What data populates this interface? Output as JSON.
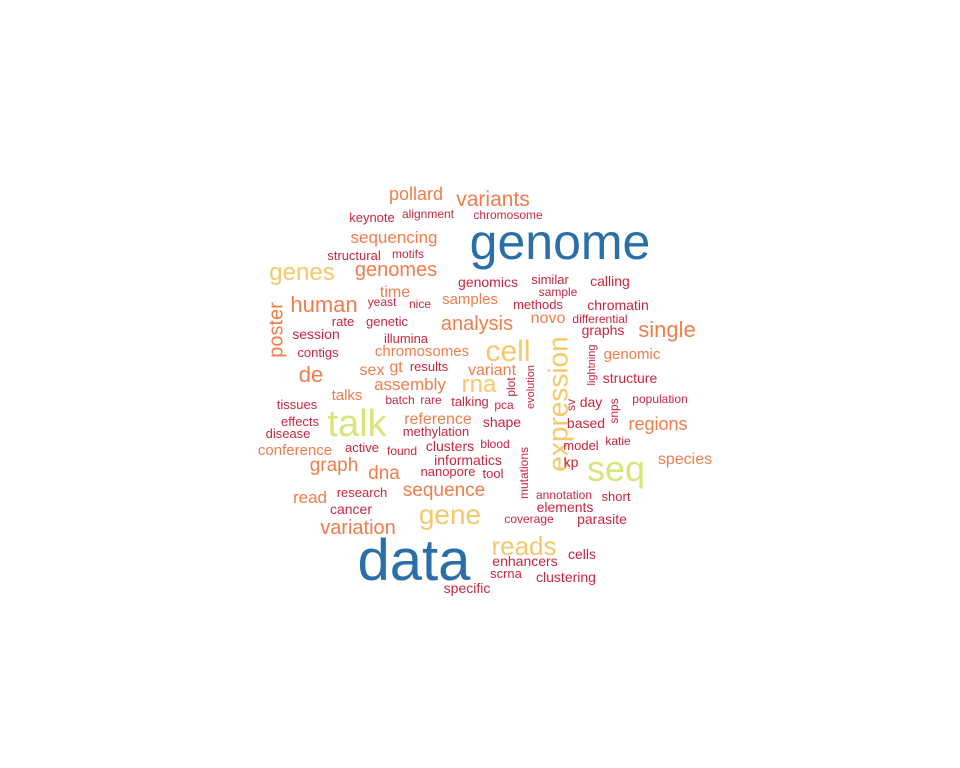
{
  "palette": {
    "blue": "#2b6fa8",
    "green": "#d4e87a",
    "yellow": "#f5c86b",
    "orange": "#f07d4c",
    "red": "#c92642"
  },
  "words": [
    {
      "text": "data",
      "color": "blue"
    },
    {
      "text": "genome",
      "color": "blue"
    },
    {
      "text": "talk",
      "color": "green"
    },
    {
      "text": "seq",
      "color": "green"
    },
    {
      "text": "expression",
      "color": "yellow"
    },
    {
      "text": "cell",
      "color": "yellow"
    },
    {
      "text": "gene",
      "color": "yellow"
    },
    {
      "text": "reads",
      "color": "yellow"
    },
    {
      "text": "genes",
      "color": "yellow"
    },
    {
      "text": "rna",
      "color": "yellow"
    },
    {
      "text": "variants",
      "color": "orange"
    },
    {
      "text": "human",
      "color": "orange"
    },
    {
      "text": "single",
      "color": "orange"
    },
    {
      "text": "genomes",
      "color": "orange"
    },
    {
      "text": "analysis",
      "color": "orange"
    },
    {
      "text": "variation",
      "color": "orange"
    },
    {
      "text": "sequence",
      "color": "orange"
    },
    {
      "text": "de",
      "color": "orange"
    },
    {
      "text": "graph",
      "color": "orange"
    },
    {
      "text": "regions",
      "color": "orange"
    },
    {
      "text": "poster",
      "color": "orange"
    },
    {
      "text": "pollard",
      "color": "orange"
    },
    {
      "text": "sequencing",
      "color": "orange"
    },
    {
      "text": "assembly",
      "color": "orange"
    },
    {
      "text": "read",
      "color": "orange"
    },
    {
      "text": "dna",
      "color": "orange"
    },
    {
      "text": "species",
      "color": "orange"
    },
    {
      "text": "reference",
      "color": "orange"
    },
    {
      "text": "chromosomes",
      "color": "orange"
    },
    {
      "text": "samples",
      "color": "orange"
    },
    {
      "text": "variant",
      "color": "orange"
    },
    {
      "text": "novo",
      "color": "orange"
    },
    {
      "text": "time",
      "color": "orange"
    },
    {
      "text": "conference",
      "color": "orange"
    },
    {
      "text": "genomic",
      "color": "orange"
    },
    {
      "text": "talks",
      "color": "orange"
    },
    {
      "text": "sex",
      "color": "orange"
    },
    {
      "text": "gt",
      "color": "orange"
    },
    {
      "text": "keynote",
      "color": "red"
    },
    {
      "text": "alignment",
      "color": "red"
    },
    {
      "text": "chromosome",
      "color": "red"
    },
    {
      "text": "structural",
      "color": "red"
    },
    {
      "text": "motifs",
      "color": "red"
    },
    {
      "text": "genomics",
      "color": "red"
    },
    {
      "text": "similar",
      "color": "red"
    },
    {
      "text": "calling",
      "color": "red"
    },
    {
      "text": "sample",
      "color": "red"
    },
    {
      "text": "yeast",
      "color": "red"
    },
    {
      "text": "nice",
      "color": "red"
    },
    {
      "text": "methods",
      "color": "red"
    },
    {
      "text": "chromatin",
      "color": "red"
    },
    {
      "text": "rate",
      "color": "red"
    },
    {
      "text": "genetic",
      "color": "red"
    },
    {
      "text": "differential",
      "color": "red"
    },
    {
      "text": "session",
      "color": "red"
    },
    {
      "text": "illumina",
      "color": "red"
    },
    {
      "text": "graphs",
      "color": "red"
    },
    {
      "text": "contigs",
      "color": "red"
    },
    {
      "text": "lightning",
      "color": "red"
    },
    {
      "text": "results",
      "color": "red"
    },
    {
      "text": "structure",
      "color": "red"
    },
    {
      "text": "plot",
      "color": "red"
    },
    {
      "text": "tissues",
      "color": "red"
    },
    {
      "text": "batch",
      "color": "red"
    },
    {
      "text": "rare",
      "color": "red"
    },
    {
      "text": "talking",
      "color": "red"
    },
    {
      "text": "pca",
      "color": "red"
    },
    {
      "text": "evolution",
      "color": "red"
    },
    {
      "text": "sv",
      "color": "red"
    },
    {
      "text": "day",
      "color": "red"
    },
    {
      "text": "snps",
      "color": "red"
    },
    {
      "text": "population",
      "color": "red"
    },
    {
      "text": "effects",
      "color": "red"
    },
    {
      "text": "shape",
      "color": "red"
    },
    {
      "text": "based",
      "color": "red"
    },
    {
      "text": "disease",
      "color": "red"
    },
    {
      "text": "methylation",
      "color": "red"
    },
    {
      "text": "katie",
      "color": "red"
    },
    {
      "text": "active",
      "color": "red"
    },
    {
      "text": "clusters",
      "color": "red"
    },
    {
      "text": "blood",
      "color": "red"
    },
    {
      "text": "model",
      "color": "red"
    },
    {
      "text": "found",
      "color": "red"
    },
    {
      "text": "informatics",
      "color": "red"
    },
    {
      "text": "mutations",
      "color": "red"
    },
    {
      "text": "kp",
      "color": "red"
    },
    {
      "text": "nanopore",
      "color": "red"
    },
    {
      "text": "tool",
      "color": "red"
    },
    {
      "text": "research",
      "color": "red"
    },
    {
      "text": "annotation",
      "color": "red"
    },
    {
      "text": "short",
      "color": "red"
    },
    {
      "text": "cancer",
      "color": "red"
    },
    {
      "text": "elements",
      "color": "red"
    },
    {
      "text": "parasite",
      "color": "red"
    },
    {
      "text": "coverage",
      "color": "red"
    },
    {
      "text": "cells",
      "color": "red"
    },
    {
      "text": "enhancers",
      "color": "red"
    },
    {
      "text": "scrna",
      "color": "red"
    },
    {
      "text": "clustering",
      "color": "red"
    },
    {
      "text": "specific",
      "color": "red"
    }
  ]
}
